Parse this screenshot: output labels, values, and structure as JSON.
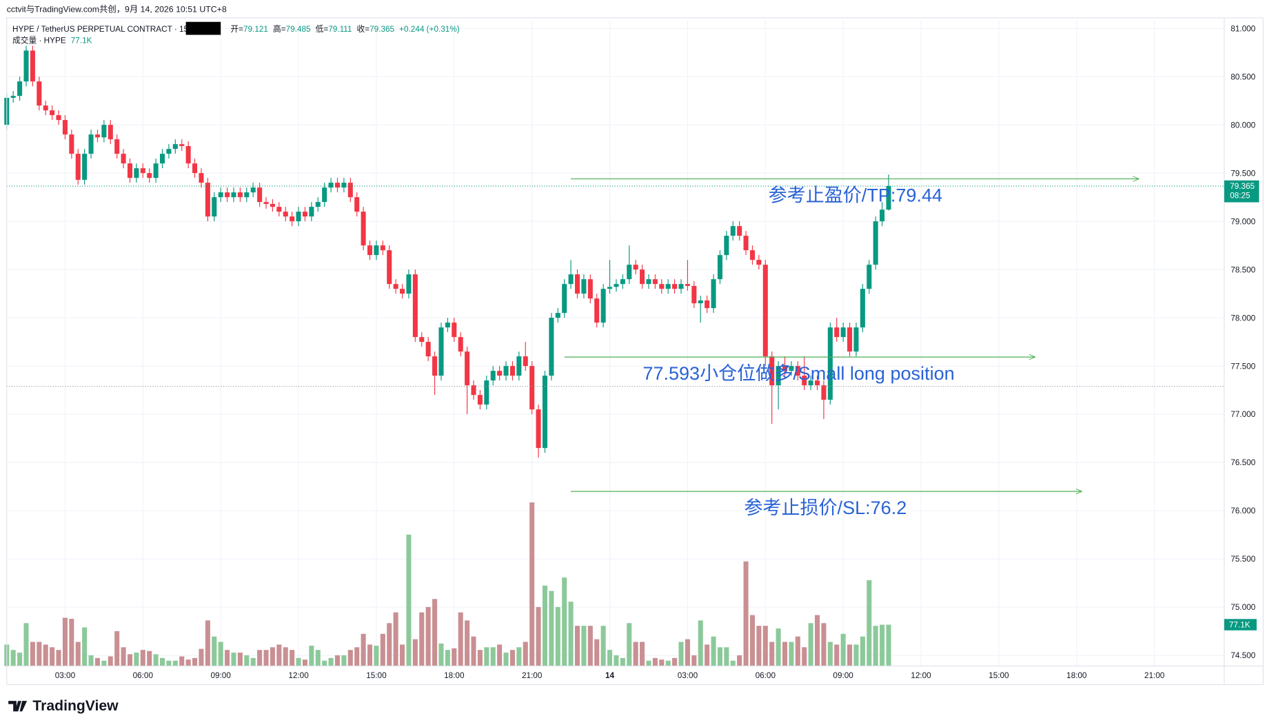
{
  "chart_data": {
    "type": "candlestick",
    "title": "cctvit与TradingView.com共创，9月 14, 2026 10:51 UTC+8",
    "symbol": "HYPE / TetherUS PERPETUAL CONTRACT · 15 ·",
    "ohlc_labels": {
      "open": "开=",
      "high": "高=",
      "low": "低=",
      "close": "收="
    },
    "change": "+0.244 (+0.31%)",
    "volume_title": "成交量 · HYPE",
    "volume_last_label": "77.1K",
    "countdown": "08:25",
    "brand": "TradingView",
    "colors": {
      "up": "#089981",
      "down": "#f23645",
      "up_volume": "#8cc99a",
      "down_volume": "#c98f92"
    },
    "grid": true,
    "xlim": [
      0.75,
      47.69
    ],
    "ylim": [
      74.39,
      81.084
    ],
    "volume_lim": [
      0,
      1204
    ],
    "yticks": [
      {
        "value": 74.5,
        "label": "74.500"
      },
      {
        "value": 75,
        "label": "75.000"
      },
      {
        "value": 75.5,
        "label": "75.500"
      },
      {
        "value": 76,
        "label": "76.000"
      },
      {
        "value": 76.5,
        "label": "76.500"
      },
      {
        "value": 77,
        "label": "77.000"
      },
      {
        "value": 77.5,
        "label": "77.500"
      },
      {
        "value": 78,
        "label": "78.000"
      },
      {
        "value": 78.5,
        "label": "78.500"
      },
      {
        "value": 79,
        "label": "79.000"
      },
      {
        "value": 79.5,
        "label": "79.500"
      },
      {
        "value": 80,
        "label": "80.000"
      },
      {
        "value": 80.5,
        "label": "80.500"
      },
      {
        "value": 81,
        "label": "81.000"
      }
    ],
    "xticks": [
      {
        "value": 3,
        "label": "03:00"
      },
      {
        "value": 6,
        "label": "06:00"
      },
      {
        "value": 9,
        "label": "09:00"
      },
      {
        "value": 12,
        "label": "12:00"
      },
      {
        "value": 15,
        "label": "15:00"
      },
      {
        "value": 18,
        "label": "18:00"
      },
      {
        "value": 21,
        "label": "21:00"
      },
      {
        "value": 24,
        "label": "14"
      },
      {
        "value": 27,
        "label": "03:00"
      },
      {
        "value": 30,
        "label": "06:00"
      },
      {
        "value": 33,
        "label": "09:00"
      },
      {
        "value": 36,
        "label": "12:00"
      },
      {
        "value": 39,
        "label": "15:00"
      },
      {
        "value": 42,
        "label": "18:00"
      },
      {
        "value": 45,
        "label": "21:00"
      }
    ],
    "x": [
      0.75,
      1,
      1.25,
      1.5,
      1.75,
      2,
      2.25,
      2.5,
      2.75,
      3,
      3.25,
      3.5,
      3.75,
      4,
      4.25,
      4.5,
      4.75,
      5,
      5.25,
      5.5,
      5.75,
      6,
      6.25,
      6.5,
      6.75,
      7,
      7.25,
      7.5,
      7.75,
      8,
      8.25,
      8.5,
      8.75,
      9,
      9.25,
      9.5,
      9.75,
      10,
      10.25,
      10.5,
      10.75,
      11,
      11.25,
      11.5,
      11.75,
      12,
      12.25,
      12.5,
      12.75,
      13,
      13.25,
      13.5,
      13.75,
      14,
      14.25,
      14.5,
      14.75,
      15,
      15.25,
      15.5,
      15.75,
      16,
      16.25,
      16.5,
      16.75,
      17,
      17.25,
      17.5,
      17.75,
      18,
      18.25,
      18.5,
      18.75,
      19,
      19.25,
      19.5,
      19.75,
      20,
      20.25,
      20.5,
      20.75,
      21,
      21.25,
      21.5,
      21.75,
      22,
      22.25,
      22.5,
      22.75,
      23,
      23.25,
      23.5,
      23.75,
      24,
      24.25,
      24.5,
      24.75,
      25,
      25.25,
      25.5,
      25.75,
      26,
      26.25,
      26.5,
      26.75,
      27,
      27.25,
      27.5,
      27.75,
      28,
      28.25,
      28.5,
      28.75,
      29,
      29.25,
      29.5,
      29.75,
      30,
      30.25,
      30.5,
      30.75,
      31,
      31.25,
      31.5,
      31.75,
      32,
      32.25,
      32.5,
      32.75,
      33,
      33.25,
      33.5,
      33.75,
      34,
      34.25,
      34.5,
      34.75
    ],
    "open": [
      80.0,
      80.28,
      80.3,
      80.45,
      80.77,
      80.45,
      80.2,
      80.15,
      80.1,
      80.05,
      79.9,
      79.7,
      79.43,
      79.7,
      79.9,
      79.87,
      80.0,
      79.85,
      79.7,
      79.6,
      79.45,
      79.55,
      79.5,
      79.45,
      79.6,
      79.7,
      79.75,
      79.8,
      79.78,
      79.6,
      79.5,
      79.4,
      79.05,
      79.25,
      79.3,
      79.25,
      79.3,
      79.25,
      79.3,
      79.35,
      79.2,
      79.18,
      79.15,
      79.1,
      79.05,
      79.0,
      79.1,
      79.05,
      79.15,
      79.2,
      79.35,
      79.4,
      79.35,
      79.4,
      79.25,
      79.1,
      78.75,
      78.65,
      78.75,
      78.7,
      78.35,
      78.3,
      78.25,
      78.45,
      77.8,
      77.75,
      77.6,
      77.4,
      77.9,
      77.95,
      77.8,
      77.65,
      77.3,
      77.2,
      77.1,
      77.35,
      77.45,
      77.4,
      77.5,
      77.4,
      77.6,
      77.5,
      77.05,
      76.65,
      77.4,
      78.0,
      78.05,
      78.35,
      78.45,
      78.25,
      78.4,
      78.2,
      77.95,
      78.3,
      78.32,
      78.35,
      78.4,
      78.55,
      78.5,
      78.35,
      78.4,
      78.35,
      78.3,
      78.35,
      78.3,
      78.35,
      78.33,
      78.15,
      78.18,
      78.1,
      78.4,
      78.65,
      78.85,
      78.95,
      78.85,
      78.7,
      78.6,
      78.55,
      77.6,
      77.3,
      77.5,
      77.45,
      77.5,
      77.4,
      77.3,
      77.35,
      77.3,
      77.15,
      77.9,
      77.8,
      77.9,
      77.65,
      77.9,
      78.3,
      78.55,
      79.0,
      79.121
    ],
    "high": [
      80.33,
      80.35,
      80.5,
      80.82,
      80.82,
      80.5,
      80.25,
      80.2,
      80.15,
      80.1,
      79.95,
      79.75,
      79.75,
      79.95,
      79.95,
      80.05,
      80.05,
      79.9,
      79.75,
      79.65,
      79.6,
      79.6,
      79.55,
      79.65,
      79.75,
      79.8,
      79.85,
      79.85,
      79.83,
      79.65,
      79.55,
      79.45,
      79.3,
      79.35,
      79.35,
      79.35,
      79.35,
      79.35,
      79.4,
      79.4,
      79.25,
      79.23,
      79.2,
      79.15,
      79.1,
      79.15,
      79.15,
      79.2,
      79.25,
      79.4,
      79.45,
      79.45,
      79.45,
      79.45,
      79.3,
      79.15,
      78.8,
      78.8,
      78.8,
      78.75,
      78.4,
      78.35,
      78.5,
      78.5,
      77.85,
      77.8,
      77.65,
      77.95,
      78.0,
      78.0,
      77.85,
      77.7,
      77.35,
      77.25,
      77.4,
      77.5,
      77.5,
      77.55,
      77.55,
      77.65,
      77.75,
      77.55,
      77.1,
      77.45,
      78.05,
      78.1,
      78.4,
      78.6,
      78.5,
      78.45,
      78.45,
      78.25,
      78.35,
      78.6,
      78.4,
      78.45,
      78.75,
      78.6,
      78.55,
      78.45,
      78.45,
      78.4,
      78.4,
      78.4,
      78.4,
      78.6,
      78.38,
      78.23,
      78.23,
      78.45,
      78.7,
      78.9,
      79.0,
      79.0,
      78.9,
      78.75,
      78.65,
      78.6,
      77.65,
      77.55,
      77.6,
      77.55,
      77.55,
      77.6,
      77.4,
      77.4,
      77.35,
      77.95,
      78.0,
      77.95,
      77.95,
      77.95,
      78.35,
      78.6,
      79.05,
      79.2,
      79.485
    ],
    "low": [
      79.95,
      80.23,
      80.25,
      80.4,
      80.4,
      80.15,
      80.1,
      80.05,
      80.0,
      79.85,
      79.65,
      79.38,
      79.38,
      79.65,
      79.82,
      79.82,
      79.8,
      79.65,
      79.55,
      79.4,
      79.4,
      79.45,
      79.4,
      79.4,
      79.55,
      79.65,
      79.7,
      79.73,
      79.55,
      79.45,
      79.35,
      79.0,
      79.0,
      79.2,
      79.2,
      79.2,
      79.2,
      79.2,
      79.25,
      79.15,
      79.13,
      79.1,
      79.05,
      79.0,
      78.95,
      78.95,
      79.0,
      79.0,
      79.1,
      79.15,
      79.3,
      79.3,
      79.3,
      79.2,
      79.05,
      78.7,
      78.6,
      78.6,
      78.65,
      78.3,
      78.25,
      78.2,
      78.2,
      77.75,
      77.7,
      77.55,
      77.2,
      77.35,
      77.85,
      77.75,
      77.6,
      77.0,
      77.15,
      77.05,
      77.05,
      77.3,
      77.35,
      77.35,
      77.35,
      77.35,
      77.45,
      77.0,
      76.55,
      76.6,
      77.35,
      77.95,
      78.0,
      78.3,
      78.2,
      78.2,
      78.15,
      77.9,
      77.9,
      78.25,
      78.27,
      78.3,
      78.35,
      78.45,
      78.3,
      78.3,
      78.3,
      78.25,
      78.25,
      78.25,
      78.25,
      78.28,
      78.1,
      77.95,
      78.05,
      78.05,
      78.35,
      78.6,
      78.8,
      78.8,
      78.65,
      78.55,
      78.5,
      77.5,
      76.9,
      77.05,
      77.4,
      77.4,
      77.35,
      77.25,
      77.25,
      77.25,
      76.95,
      77.1,
      77.75,
      77.75,
      77.6,
      77.6,
      77.85,
      78.25,
      78.5,
      78.95,
      79.111
    ],
    "close": [
      80.28,
      80.3,
      80.45,
      80.77,
      80.45,
      80.2,
      80.15,
      80.1,
      80.05,
      79.9,
      79.7,
      79.43,
      79.7,
      79.9,
      79.87,
      80.0,
      79.85,
      79.7,
      79.6,
      79.45,
      79.55,
      79.5,
      79.45,
      79.6,
      79.7,
      79.75,
      79.8,
      79.78,
      79.6,
      79.5,
      79.4,
      79.05,
      79.25,
      79.3,
      79.25,
      79.3,
      79.25,
      79.3,
      79.35,
      79.2,
      79.18,
      79.15,
      79.1,
      79.05,
      79.0,
      79.1,
      79.05,
      79.15,
      79.2,
      79.35,
      79.4,
      79.35,
      79.4,
      79.25,
      79.1,
      78.75,
      78.65,
      78.75,
      78.7,
      78.35,
      78.3,
      78.25,
      78.45,
      77.8,
      77.75,
      77.6,
      77.4,
      77.9,
      77.95,
      77.8,
      77.65,
      77.3,
      77.2,
      77.1,
      77.35,
      77.45,
      77.4,
      77.5,
      77.4,
      77.6,
      77.5,
      77.05,
      76.65,
      77.4,
      78.0,
      78.05,
      78.35,
      78.45,
      78.25,
      78.4,
      78.2,
      77.95,
      78.3,
      78.32,
      78.35,
      78.4,
      78.55,
      78.5,
      78.35,
      78.4,
      78.35,
      78.3,
      78.35,
      78.3,
      78.35,
      78.33,
      78.15,
      78.18,
      78.1,
      78.4,
      78.65,
      78.85,
      78.95,
      78.85,
      78.7,
      78.6,
      78.55,
      77.6,
      77.3,
      77.5,
      77.45,
      77.5,
      77.4,
      77.3,
      77.35,
      77.3,
      77.15,
      77.9,
      77.8,
      77.9,
      77.65,
      77.9,
      78.3,
      78.55,
      79.0,
      79.121,
      79.365
    ],
    "volume": [
      40,
      30,
      25,
      80,
      45,
      45,
      40,
      35,
      30,
      90,
      88,
      45,
      72,
      20,
      15,
      10,
      18,
      65,
      35,
      22,
      25,
      30,
      28,
      22,
      15,
      10,
      10,
      18,
      12,
      15,
      32,
      85,
      55,
      45,
      30,
      25,
      25,
      20,
      15,
      30,
      30,
      35,
      40,
      35,
      30,
      15,
      12,
      38,
      30,
      10,
      15,
      20,
      20,
      30,
      35,
      60,
      40,
      38,
      60,
      80,
      100,
      40,
      245,
      50,
      100,
      110,
      125,
      42,
      30,
      33,
      100,
      85,
      55,
      30,
      35,
      35,
      40,
      25,
      30,
      35,
      45,
      305,
      110,
      150,
      140,
      110,
      165,
      120,
      75,
      75,
      75,
      50,
      75,
      30,
      20,
      15,
      80,
      45,
      45,
      10,
      15,
      12,
      10,
      15,
      45,
      50,
      20,
      85,
      40,
      55,
      35,
      35,
      10,
      20,
      195,
      95,
      75,
      75,
      45,
      70,
      45,
      45,
      55,
      35,
      80,
      95,
      80,
      45,
      40,
      60,
      40,
      40,
      55,
      160,
      75,
      77,
      77.1
    ],
    "reference_line": 77.29,
    "annotations": [
      {
        "text": "参考止盈价/TP:79.44",
        "price": 79.44,
        "x_range": [
          22.5,
          44.4
        ]
      },
      {
        "text": "77.593小仓位做多/Small long position",
        "price": 77.593,
        "x_range": [
          22.25,
          40.4
        ]
      },
      {
        "text": "参考止损价/SL:76.2",
        "price": 76.2,
        "x_range": [
          22.5,
          42.2
        ]
      }
    ]
  }
}
